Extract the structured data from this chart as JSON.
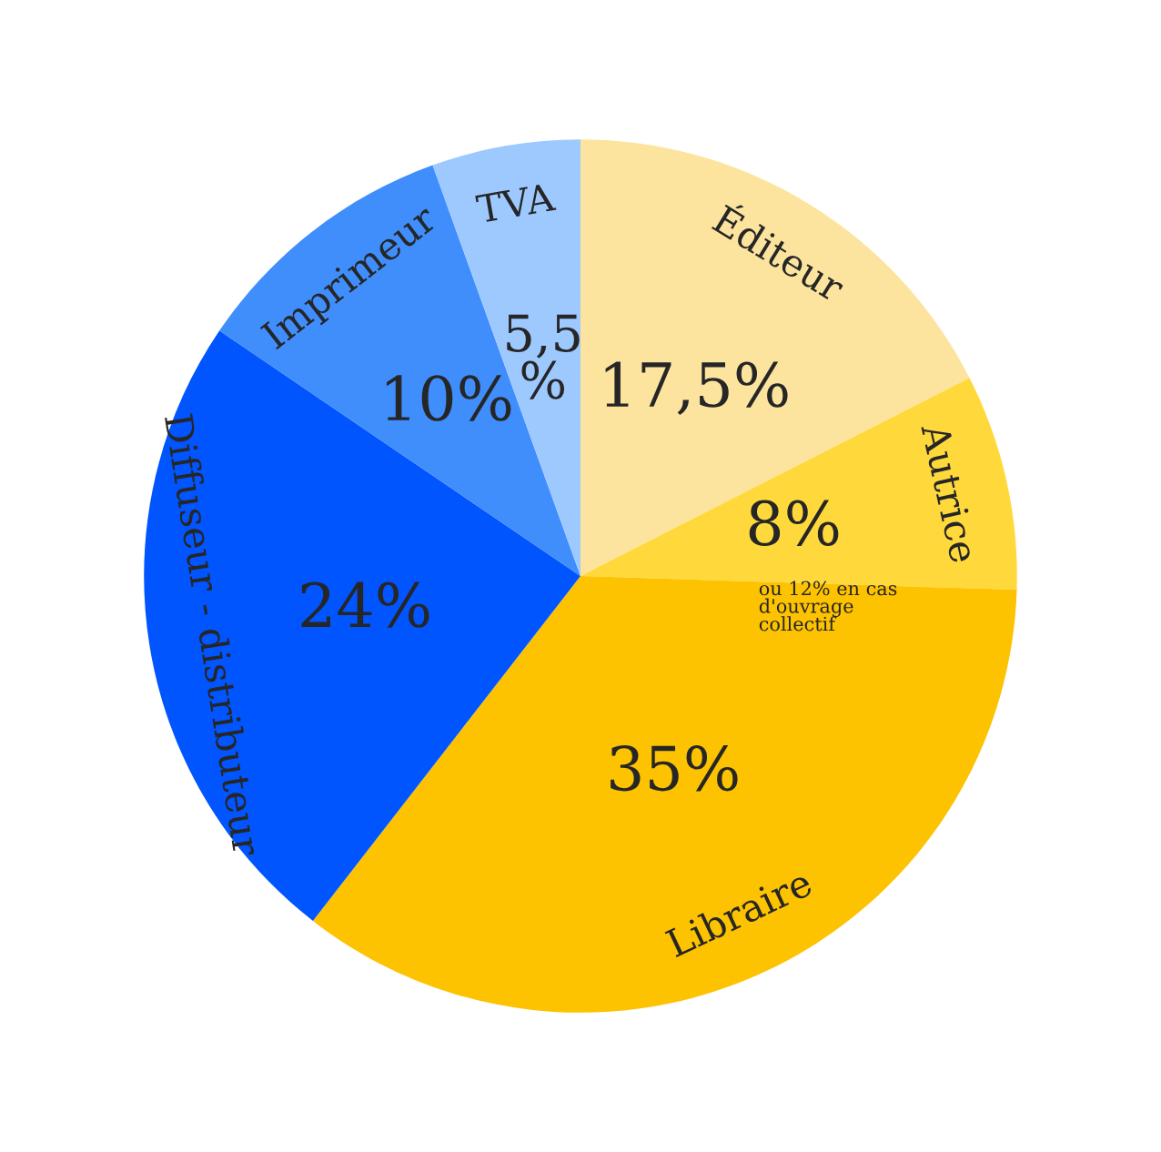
{
  "chart_data": {
    "type": "pie",
    "categories": [
      "Éditeur",
      "Autrice",
      "Libraire",
      "Diffuseur - distributeur",
      "Imprimeur",
      "TVA"
    ],
    "values": [
      17.5,
      8,
      35,
      24,
      10,
      5.5
    ],
    "value_labels": [
      "17,5%",
      "8%",
      "35%",
      "24%",
      "10%",
      "5,5\n%"
    ],
    "colors": [
      "#fde49e",
      "#ffd93b",
      "#fdc200",
      "#0055ff",
      "#3f8efc",
      "#9ec9ff"
    ],
    "annotations": [
      "ou 12% en cas\nd'ouvrage\ncollectif"
    ],
    "legend": false
  }
}
